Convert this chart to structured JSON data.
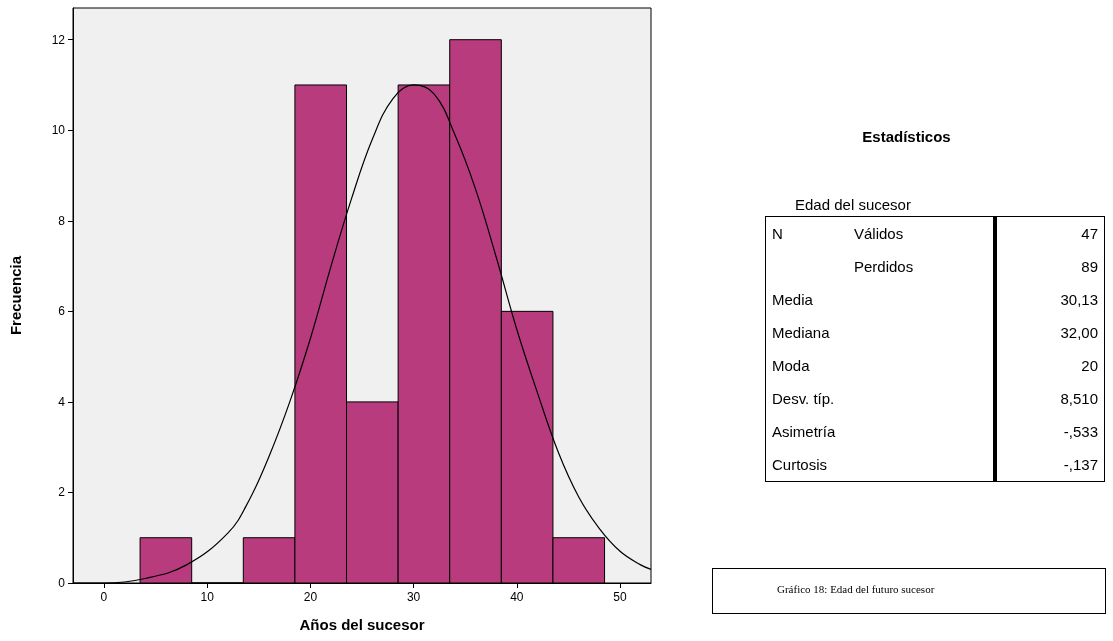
{
  "chart_data": [
    {
      "type": "histogram",
      "xlabel": "Años del sucesor",
      "ylabel": "Frecuencia",
      "bins": [
        3.5,
        8.5,
        13.5,
        18.5,
        23.5,
        28.5,
        33.5,
        38.5,
        43.5,
        48.5
      ],
      "values": [
        1,
        0,
        1,
        11,
        4,
        11,
        12,
        6,
        1
      ],
      "color": "#b83b7d",
      "series": [
        {
          "type": "line",
          "color": "#000000",
          "x": [
            -3,
            -2,
            0,
            4,
            8,
            12,
            14,
            16,
            18,
            20,
            22,
            24,
            26,
            28,
            30,
            32,
            34,
            36,
            38,
            40,
            42,
            44,
            46,
            48,
            50,
            52,
            53
          ],
          "values": [
            0.0,
            0.0,
            0.0,
            0.1,
            0.4,
            1.1,
            1.8,
            2.8,
            4.0,
            5.4,
            7.0,
            8.5,
            9.8,
            10.7,
            11.0,
            10.8,
            9.9,
            8.7,
            7.2,
            5.6,
            4.2,
            2.9,
            1.9,
            1.2,
            0.7,
            0.4,
            0.3
          ]
        }
      ],
      "xlim": [
        -3,
        53
      ],
      "xticks": [
        0,
        10,
        20,
        30,
        40,
        50
      ],
      "ylim": [
        0,
        12.7
      ],
      "yticks": [
        0,
        2,
        4,
        6,
        8,
        10,
        12
      ],
      "grid": false
    },
    {
      "type": "other",
      "title": "Estadísticos",
      "subtitle": "Edad del sucesor",
      "categories": [
        "N",
        null,
        "Media",
        "Mediana",
        "Moda",
        "Desv. típ.",
        "Asimetría",
        "Curtosis"
      ],
      "y2_categories": [
        "Válidos",
        "Perdidos",
        null,
        null,
        null,
        null,
        null,
        null
      ],
      "value_labels": [
        "47",
        "89",
        "30,13",
        "32,00",
        "20",
        "8,510",
        "-,533",
        "-,137"
      ],
      "annotations": [
        "Gráfico 18: Edad del futuro sucesor"
      ]
    }
  ]
}
